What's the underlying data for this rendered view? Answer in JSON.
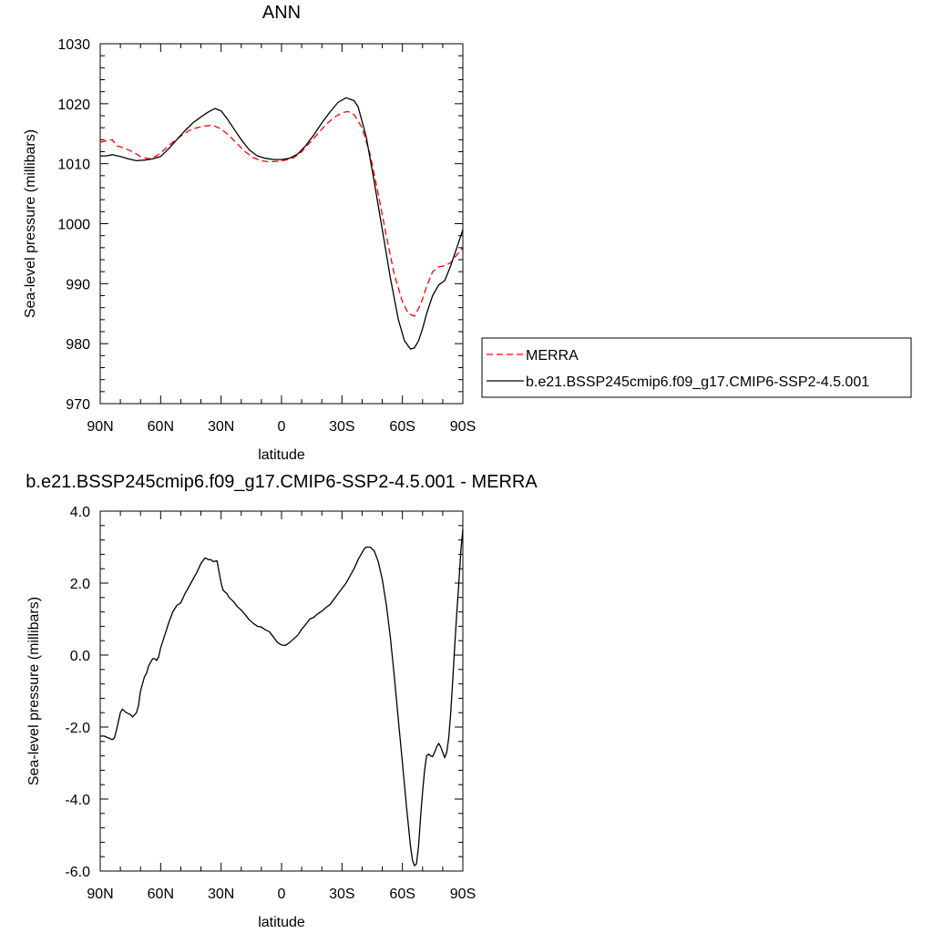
{
  "chart_data": [
    {
      "type": "line",
      "title": "ANN",
      "xlabel": "latitude",
      "ylabel": "Sea-level pressure (millibars)",
      "xlim": [
        90,
        -90
      ],
      "ylim": [
        970,
        1030
      ],
      "xtick_values": [
        90,
        60,
        30,
        0,
        -30,
        -60,
        -90
      ],
      "xtick_labels": [
        "90N",
        "60N",
        "30N",
        "0",
        "30S",
        "60S",
        "90S"
      ],
      "ytick_values": [
        970,
        980,
        990,
        1000,
        1010,
        1020,
        1030
      ],
      "ytick_labels": [
        "970",
        "980",
        "990",
        "1000",
        "1010",
        "1020",
        "1030"
      ],
      "grid": false,
      "legend_position": "right",
      "series": [
        {
          "name": "MERRA",
          "color": "#ff0000",
          "dash": "dashed",
          "x": [
            90,
            87,
            84,
            82,
            78,
            74,
            70,
            66,
            62,
            58,
            54,
            50,
            46,
            42,
            38,
            34,
            30,
            26,
            22,
            18,
            14,
            10,
            6,
            2,
            -2,
            -6,
            -10,
            -14,
            -18,
            -22,
            -26,
            -30,
            -33,
            -36,
            -40,
            -44,
            -48,
            -52,
            -56,
            -60,
            -63,
            -66,
            -69,
            -72,
            -75,
            -78,
            -81,
            -84,
            -87,
            -90
          ],
          "y": [
            1013.6,
            1013.8,
            1014.0,
            1013.0,
            1012.6,
            1012.0,
            1011.2,
            1010.8,
            1011.3,
            1012.4,
            1013.6,
            1014.6,
            1015.5,
            1016.0,
            1016.3,
            1016.4,
            1015.8,
            1014.7,
            1013.3,
            1012.0,
            1011.0,
            1010.5,
            1010.3,
            1010.4,
            1010.6,
            1011.0,
            1012.0,
            1013.5,
            1015.0,
            1016.5,
            1017.7,
            1018.5,
            1018.7,
            1018.2,
            1016.0,
            1011.5,
            1005.0,
            998.0,
            991.5,
            987.0,
            985.0,
            984.6,
            986.5,
            989.5,
            992.0,
            992.8,
            993.0,
            993.5,
            994.8,
            996.0
          ]
        },
        {
          "name": "b.e21.BSSP245cmip6.f09_g17.CMIP6-SSP2-4.5.001",
          "color": "#000000",
          "dash": "solid",
          "x": [
            90,
            87,
            84,
            80,
            76,
            72,
            68,
            64,
            60,
            56,
            52,
            48,
            44,
            40,
            36,
            33,
            30,
            27,
            24,
            20,
            16,
            12,
            8,
            4,
            0,
            -4,
            -8,
            -12,
            -16,
            -20,
            -24,
            -28,
            -32,
            -36,
            -38,
            -42,
            -46,
            -50,
            -54,
            -58,
            -61,
            -64,
            -66,
            -68,
            -70,
            -72,
            -75,
            -78,
            -81,
            -84,
            -87,
            -90
          ],
          "y": [
            1011.3,
            1011.3,
            1011.5,
            1011.2,
            1010.8,
            1010.5,
            1010.6,
            1010.8,
            1011.2,
            1012.5,
            1014.0,
            1015.5,
            1016.8,
            1017.8,
            1018.7,
            1019.2,
            1018.8,
            1017.5,
            1016.0,
            1014.0,
            1012.3,
            1011.3,
            1010.9,
            1010.7,
            1010.7,
            1010.9,
            1011.6,
            1013.0,
            1014.8,
            1016.8,
            1018.6,
            1020.2,
            1021.0,
            1020.5,
            1019.5,
            1014.5,
            1007.0,
            999.0,
            991.0,
            984.0,
            980.5,
            979.1,
            979.3,
            980.5,
            982.5,
            985.0,
            988.0,
            989.8,
            990.5,
            993.0,
            996.0,
            999.0
          ]
        }
      ]
    },
    {
      "type": "line",
      "title": "b.e21.BSSP245cmip6.f09_g17.CMIP6-SSP2-4.5.001 - MERRA",
      "xlabel": "latitude",
      "ylabel": "Sea-level pressure (millibars)",
      "xlim": [
        90,
        -90
      ],
      "ylim": [
        -6.0,
        4.0
      ],
      "xtick_values": [
        90,
        60,
        30,
        0,
        -30,
        -60,
        -90
      ],
      "xtick_labels": [
        "90N",
        "60N",
        "30N",
        "0",
        "30S",
        "60S",
        "90S"
      ],
      "ytick_values": [
        -6,
        -4,
        -2,
        0,
        2,
        4
      ],
      "ytick_labels": [
        "-6.0",
        "-4.0",
        "-2.0",
        "0.0",
        "2.0",
        "4.0"
      ],
      "grid": false,
      "series": [
        {
          "color": "#000000",
          "dash": "solid",
          "x": [
            90,
            88,
            86,
            84,
            83,
            82,
            80,
            79,
            77,
            75,
            74,
            72,
            71,
            70,
            68,
            67,
            66,
            64,
            63,
            62,
            61,
            60,
            58,
            56,
            54,
            52,
            50,
            48,
            46,
            44,
            42,
            40,
            38,
            36,
            35,
            34,
            32,
            30,
            29,
            28,
            27,
            26,
            24,
            22,
            20,
            18,
            16,
            14,
            12,
            10,
            8,
            6,
            4,
            2,
            0,
            -2,
            -4,
            -6,
            -8,
            -10,
            -12,
            -14,
            -16,
            -18,
            -20,
            -22,
            -24,
            -26,
            -28,
            -30,
            -32,
            -34,
            -36,
            -38,
            -40,
            -41,
            -42,
            -44,
            -46,
            -48,
            -50,
            -52,
            -54,
            -56,
            -58,
            -60,
            -62,
            -64,
            -65,
            -66,
            -67,
            -68,
            -69,
            -70,
            -71,
            -72,
            -73,
            -74,
            -75,
            -76,
            -77,
            -78,
            -79,
            -80,
            -81,
            -82,
            -83,
            -84,
            -85,
            -86,
            -87,
            -88,
            -89,
            -90
          ],
          "y": [
            -2.25,
            -2.25,
            -2.3,
            -2.35,
            -2.3,
            -2.1,
            -1.6,
            -1.5,
            -1.6,
            -1.65,
            -1.72,
            -1.6,
            -1.4,
            -1.0,
            -0.6,
            -0.5,
            -0.3,
            -0.1,
            -0.1,
            -0.15,
            -0.05,
            0.2,
            0.55,
            0.9,
            1.2,
            1.38,
            1.45,
            1.7,
            1.9,
            2.1,
            2.3,
            2.55,
            2.7,
            2.65,
            2.65,
            2.6,
            2.62,
            2.0,
            1.8,
            1.75,
            1.7,
            1.6,
            1.5,
            1.35,
            1.25,
            1.12,
            0.98,
            0.88,
            0.8,
            0.78,
            0.7,
            0.65,
            0.5,
            0.35,
            0.28,
            0.27,
            0.35,
            0.45,
            0.55,
            0.72,
            0.85,
            1.0,
            1.05,
            1.15,
            1.22,
            1.32,
            1.4,
            1.55,
            1.7,
            1.85,
            2.0,
            2.2,
            2.4,
            2.65,
            2.85,
            2.95,
            3.0,
            3.0,
            2.9,
            2.6,
            2.1,
            1.4,
            0.5,
            -0.6,
            -1.8,
            -3.0,
            -4.2,
            -5.3,
            -5.7,
            -5.85,
            -5.8,
            -5.3,
            -4.5,
            -3.8,
            -3.2,
            -2.8,
            -2.75,
            -2.8,
            -2.82,
            -2.7,
            -2.55,
            -2.45,
            -2.55,
            -2.7,
            -2.85,
            -2.7,
            -2.3,
            -1.6,
            -0.7,
            0.3,
            1.2,
            2.0,
            2.9,
            3.5
          ]
        }
      ]
    }
  ]
}
